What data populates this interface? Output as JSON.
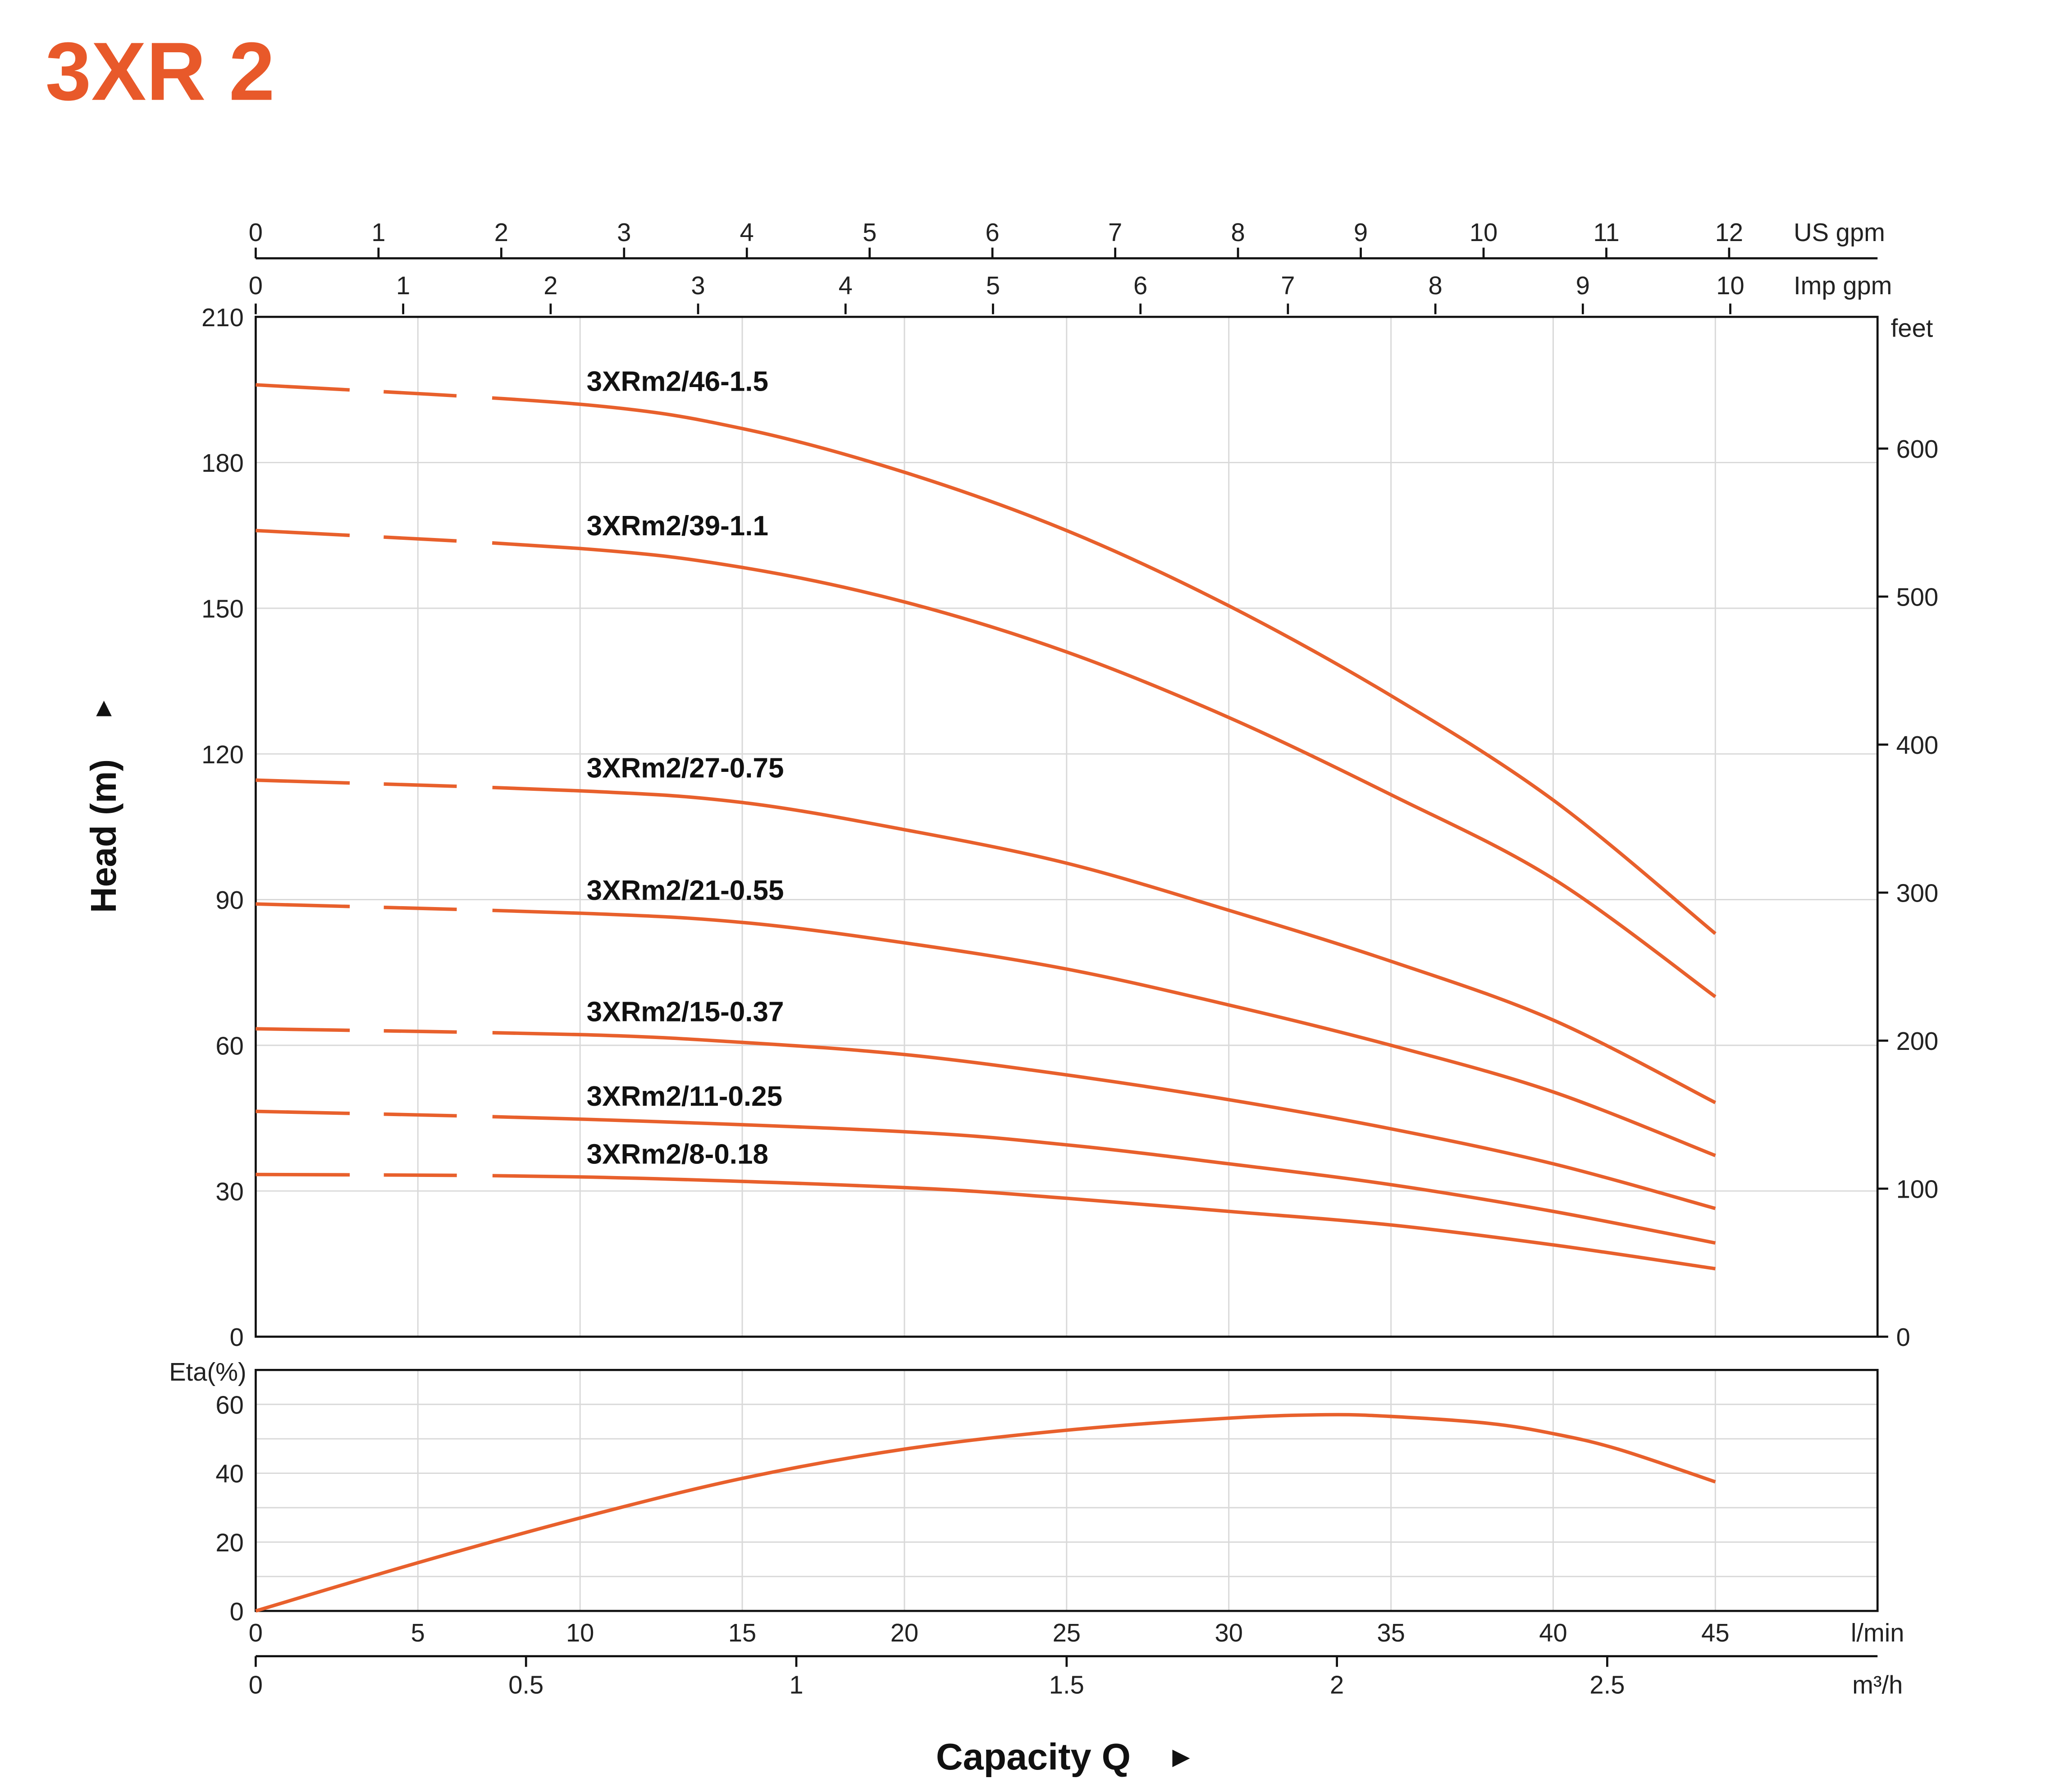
{
  "title": "3XR 2",
  "colors": {
    "title": "#E8592A",
    "curve": "#E8602C",
    "grid": "#d9d9d9",
    "axis": "#111111"
  },
  "chart_data": [
    {
      "type": "line",
      "title": "",
      "xlabel": "Capacity Q",
      "ylabel": "Head (m)",
      "y2label": "feet",
      "x_unit": "l/min",
      "xlim": [
        0,
        50
      ],
      "ylim": [
        0,
        210
      ],
      "y_ticks": [
        0,
        30,
        60,
        90,
        120,
        150,
        180,
        210
      ],
      "y2_ticks": [
        0,
        100,
        200,
        300,
        400,
        500,
        600
      ],
      "x_ticks": [
        0,
        5,
        10,
        15,
        20,
        25,
        30,
        35,
        40,
        45
      ],
      "x_unit_label": "l/min",
      "top_axes": [
        {
          "label": "US gpm",
          "ticks": [
            0,
            1,
            2,
            3,
            4,
            5,
            6,
            7,
            8,
            9,
            10,
            11,
            12
          ]
        },
        {
          "label": "Imp gpm",
          "ticks": [
            0,
            1,
            2,
            3,
            4,
            5,
            6,
            7,
            8,
            9,
            10
          ]
        }
      ],
      "bottom_axis2": {
        "label": "m³/h",
        "ticks": [
          "0",
          "0.5",
          "1",
          "1.5",
          "2",
          "2.5"
        ]
      },
      "grid": true,
      "dashed_below_x": 7.3,
      "series": [
        {
          "name": "3XRm2/46-1.5",
          "x": [
            0,
            10,
            15,
            20,
            25,
            30,
            35,
            40,
            45
          ],
          "y": [
            196,
            192,
            187,
            178,
            166,
            150.5,
            132,
            110.5,
            83
          ]
        },
        {
          "name": "3XRm2/39-1.1",
          "x": [
            0,
            10,
            15,
            20,
            25,
            30,
            35,
            40,
            45
          ],
          "y": [
            166,
            162.3,
            158.4,
            151.3,
            141,
            127.5,
            111.6,
            94.3,
            70
          ]
        },
        {
          "name": "3XRm2/27-0.75",
          "x": [
            0,
            10,
            15,
            20,
            25,
            30,
            35,
            40,
            45
          ],
          "y": [
            114.6,
            112.4,
            110,
            104.4,
            97.5,
            87.8,
            77.3,
            65.2,
            48.2
          ]
        },
        {
          "name": "3XRm2/21-0.55",
          "x": [
            0,
            10,
            15,
            20,
            25,
            30,
            35,
            40,
            45
          ],
          "y": [
            89.1,
            87.2,
            85.3,
            81.1,
            75.7,
            68.3,
            60,
            50.4,
            37.3
          ]
        },
        {
          "name": "3XRm2/15-0.37",
          "x": [
            0,
            10,
            15,
            20,
            25,
            30,
            35,
            40,
            45
          ],
          "y": [
            63.4,
            62.2,
            60.6,
            58.1,
            53.9,
            48.8,
            42.8,
            35.6,
            26.4
          ]
        },
        {
          "name": "3XRm2/11-0.25",
          "x": [
            0,
            10,
            20,
            25,
            30,
            35,
            40,
            45
          ],
          "y": [
            46.4,
            44.8,
            42.2,
            39.5,
            35.6,
            31.3,
            25.8,
            19.3
          ]
        },
        {
          "name": "3XRm2/8-0.18",
          "x": [
            0,
            10,
            20,
            25,
            30,
            35,
            40,
            45
          ],
          "y": [
            33.4,
            32.9,
            30.7,
            28.5,
            25.8,
            23,
            18.9,
            14
          ]
        }
      ]
    },
    {
      "type": "line",
      "title": "",
      "ylabel": "Eta(%)",
      "xlim": [
        0,
        50
      ],
      "ylim": [
        0,
        70
      ],
      "y_ticks": [
        0,
        20,
        40,
        60
      ],
      "grid": true,
      "series": [
        {
          "x": [
            0,
            5,
            10,
            15,
            20,
            25,
            30,
            33,
            35,
            38,
            40,
            42,
            45
          ],
          "y": [
            0,
            14,
            27,
            38.5,
            47,
            52.5,
            56,
            57,
            56.5,
            54.5,
            51.5,
            47,
            37.5
          ]
        }
      ]
    }
  ]
}
